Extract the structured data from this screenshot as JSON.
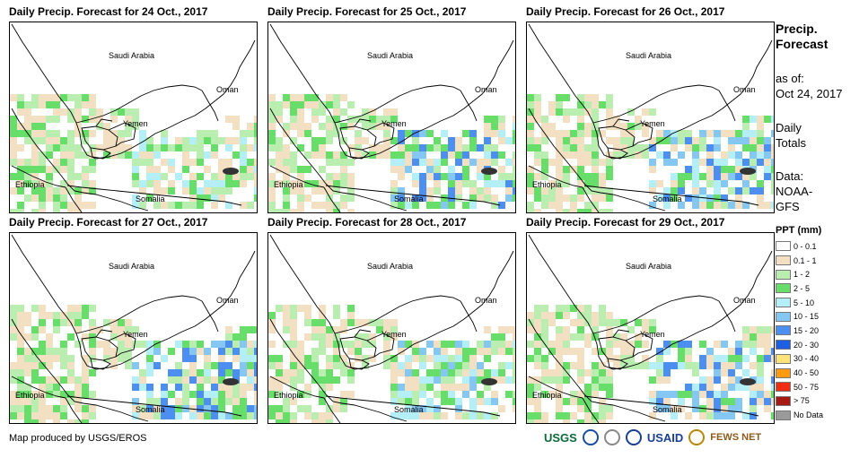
{
  "panels": [
    {
      "title": "Daily Precip. Forecast for 24 Oct., 2017",
      "seed": 1,
      "wet": 0.8
    },
    {
      "title": "Daily Precip. Forecast for 25 Oct., 2017",
      "seed": 2,
      "wet": 1.4
    },
    {
      "title": "Daily Precip. Forecast for 26 Oct., 2017",
      "seed": 3,
      "wet": 1.2
    },
    {
      "title": "Daily Precip. Forecast for 27 Oct., 2017",
      "seed": 4,
      "wet": 1.3
    },
    {
      "title": "Daily Precip. Forecast for 28 Oct., 2017",
      "seed": 5,
      "wet": 1.0
    },
    {
      "title": "Daily Precip. Forecast for 29 Oct., 2017",
      "seed": 6,
      "wet": 1.3
    }
  ],
  "places": [
    "Saudi Arabia",
    "Oman",
    "Yemen",
    "Ethiopia",
    "Somalia"
  ],
  "side": {
    "title_line1": "Precip.",
    "title_line2": "Forecast",
    "asof_line1": "as of:",
    "asof_line2": "Oct 24, 2017",
    "daily_line1": "Daily",
    "daily_line2": "Totals",
    "data_line1": "Data:",
    "data_line2": "NOAA-",
    "data_line3": "GFS"
  },
  "legend": {
    "title": "PPT (mm)",
    "items": [
      {
        "label": "0 - 0.1",
        "color": "#ffffff"
      },
      {
        "label": "0.1 - 1",
        "color": "#f3dfc2"
      },
      {
        "label": "1 - 2",
        "color": "#b9eeb0"
      },
      {
        "label": "2 - 5",
        "color": "#67dd6a"
      },
      {
        "label": "5 - 10",
        "color": "#b4eef7"
      },
      {
        "label": "10 - 15",
        "color": "#84c7f2"
      },
      {
        "label": "15 - 20",
        "color": "#4d8ff0"
      },
      {
        "label": "20 - 30",
        "color": "#1e5fe0"
      },
      {
        "label": "30 - 40",
        "color": "#ffe37a"
      },
      {
        "label": "40 - 50",
        "color": "#ff9b10"
      },
      {
        "label": "50 - 75",
        "color": "#f02d10"
      },
      {
        "label": "> 75",
        "color": "#a51a12"
      },
      {
        "label": "No Data",
        "color": "#9a9a9a"
      }
    ]
  },
  "credit": "Map produced by USGS/EROS",
  "logos": {
    "usgs": "USGS",
    "usaid": "USAID",
    "fewsnet": "FEWS NET"
  }
}
